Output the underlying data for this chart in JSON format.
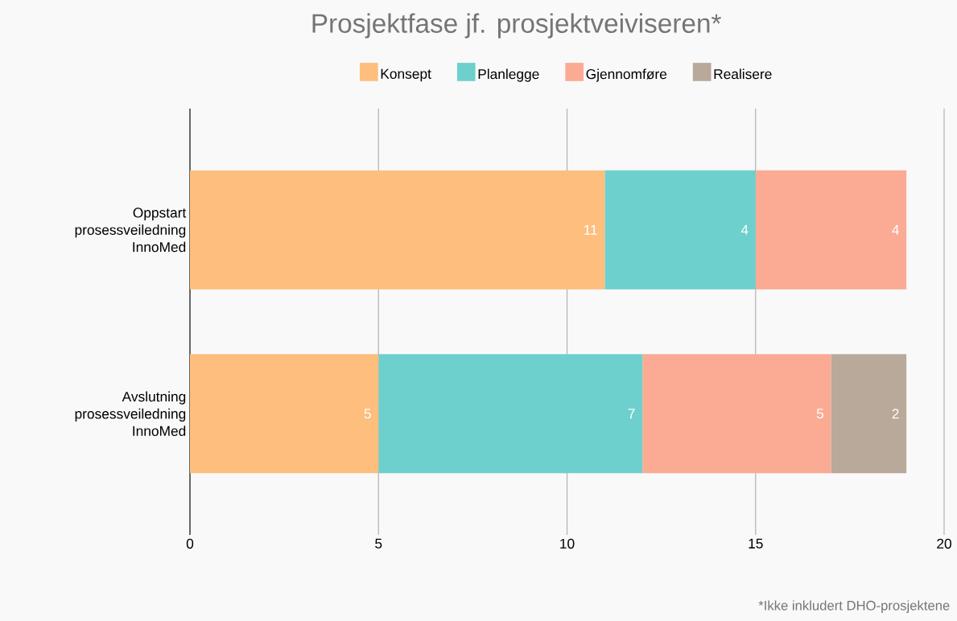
{
  "chart_data": {
    "type": "bar",
    "orientation": "horizontal",
    "stacked": true,
    "title": "Prosjektfase jf. prosjektveiviseren*",
    "categories": [
      "Oppstart prosessveiledning InnoMed",
      "Avslutning prosessveiledning InnoMed"
    ],
    "series": [
      {
        "name": "Konsept",
        "color": "#fdbe7e",
        "values": [
          11,
          5
        ]
      },
      {
        "name": "Planlegge",
        "color": "#6dd0cc",
        "values": [
          4,
          7
        ]
      },
      {
        "name": "Gjennomføre",
        "color": "#fbaa94",
        "values": [
          4,
          5
        ]
      },
      {
        "name": "Realisere",
        "color": "#b8a99a",
        "values": [
          null,
          2
        ]
      }
    ],
    "xlim": [
      0,
      20
    ],
    "xticks": [
      0,
      5,
      10,
      15,
      20
    ],
    "grid": "x",
    "legend": "top",
    "data_labels": true,
    "annotations": [
      "*Ikke inkludert DHO-prosjektene"
    ]
  }
}
